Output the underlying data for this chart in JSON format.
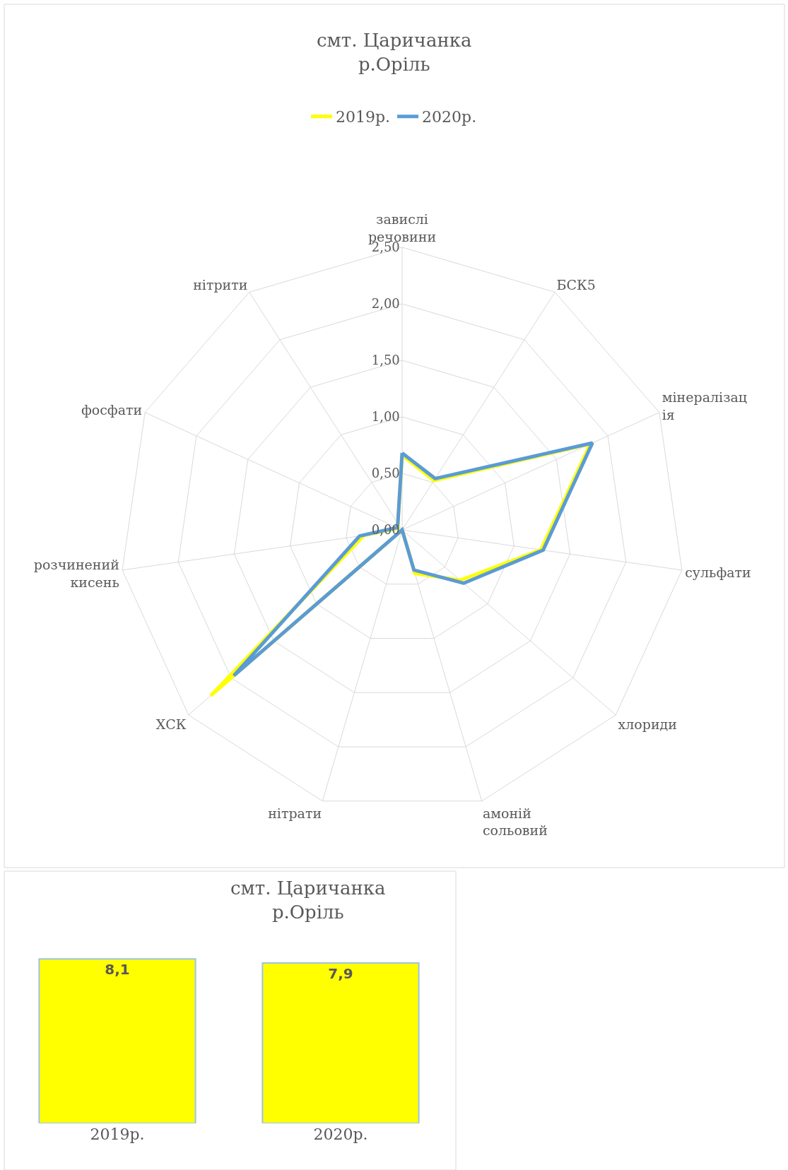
{
  "chart_data": [
    {
      "type": "radar",
      "title": "смт. Царичанка\nр.Оріль",
      "categories": [
        "завислі\nречовини",
        "БСК5",
        "мінералізац\nія",
        "сульфати",
        "хлориди",
        "амоній\nсольовий",
        "нітрати",
        "ХСК",
        "розчинений\nкисень",
        "фосфати",
        "нітрити"
      ],
      "series": [
        {
          "name": "2019р.",
          "color": "#ffff00",
          "values": [
            0.66,
            0.52,
            1.83,
            1.24,
            0.68,
            0.4,
            0.0,
            2.24,
            0.34,
            0.04,
            0.07
          ]
        },
        {
          "name": "2020р.",
          "color": "#5b9bd5",
          "values": [
            0.68,
            0.54,
            1.85,
            1.26,
            0.72,
            0.37,
            0.0,
            1.97,
            0.38,
            0.05,
            0.07
          ]
        }
      ],
      "ylim": [
        0,
        2.5
      ],
      "yticks": [
        {
          "value": 0,
          "label": "0,00"
        },
        {
          "value": 0.5,
          "label": "0,50"
        },
        {
          "value": 1,
          "label": "1,00"
        },
        {
          "value": 1.5,
          "label": "1,50"
        },
        {
          "value": 2,
          "label": "2,00"
        },
        {
          "value": 2.5,
          "label": "2,50"
        }
      ],
      "legend": "top",
      "marker": "none"
    },
    {
      "type": "bar",
      "title": "смт. Царичанка\nр.Оріль",
      "categories": [
        "2019р.",
        "2020р."
      ],
      "values": [
        8.1,
        7.9
      ],
      "value_labels": [
        "8,1",
        "7,9"
      ],
      "color": "#ffff00",
      "tick_labels": "x"
    }
  ]
}
